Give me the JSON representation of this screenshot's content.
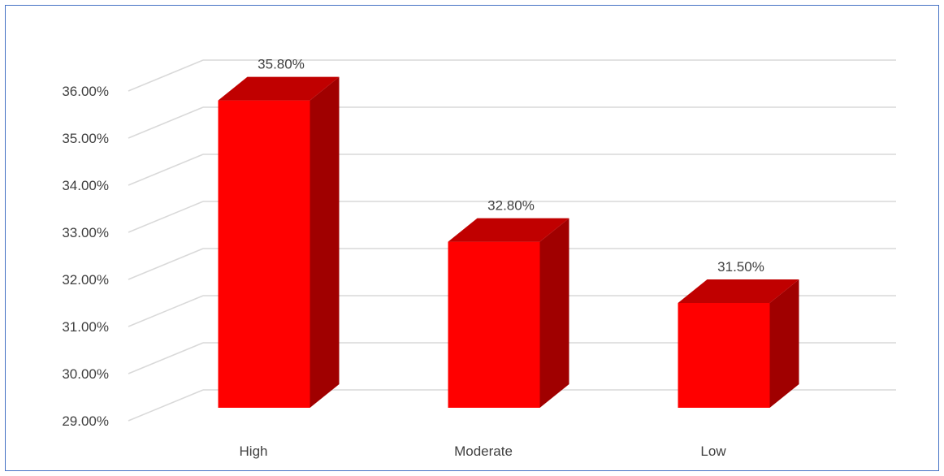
{
  "chart_data": {
    "type": "bar",
    "categories": [
      "High",
      "Moderate",
      "Low"
    ],
    "values": [
      35.8,
      32.8,
      31.5
    ],
    "data_labels": [
      "35.80%",
      "32.80%",
      "31.50%"
    ],
    "ylim": [
      29,
      37
    ],
    "yticks": [
      29,
      30,
      31,
      32,
      33,
      34,
      35,
      36
    ],
    "ytick_labels": [
      "29.00%",
      "30.00%",
      "31.00%",
      "32.00%",
      "33.00%",
      "34.00%",
      "35.00%",
      "36.00%"
    ],
    "grid": true,
    "legend": "none",
    "style": "3d-column",
    "colors": {
      "front": "#FF0000",
      "top": "#C00000",
      "side": "#A00000",
      "grid": "#D9D9D9",
      "border": "#4472C4"
    }
  }
}
